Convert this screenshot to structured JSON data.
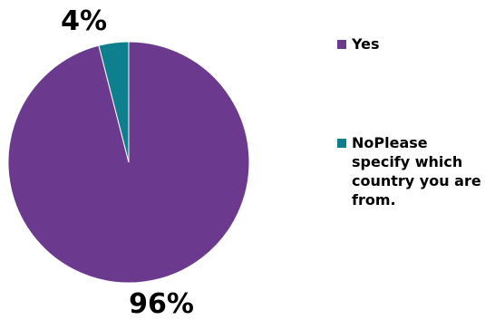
{
  "chart_data": {
    "type": "pie",
    "series": [
      {
        "name": "Yes",
        "value": 96,
        "label": "96%",
        "color": "#6b3a8f"
      },
      {
        "name": "NoPlease specify which country you are from.",
        "value": 4,
        "label": "4%",
        "color": "#0e7f8c"
      }
    ],
    "legend_position": "right",
    "title": ""
  }
}
